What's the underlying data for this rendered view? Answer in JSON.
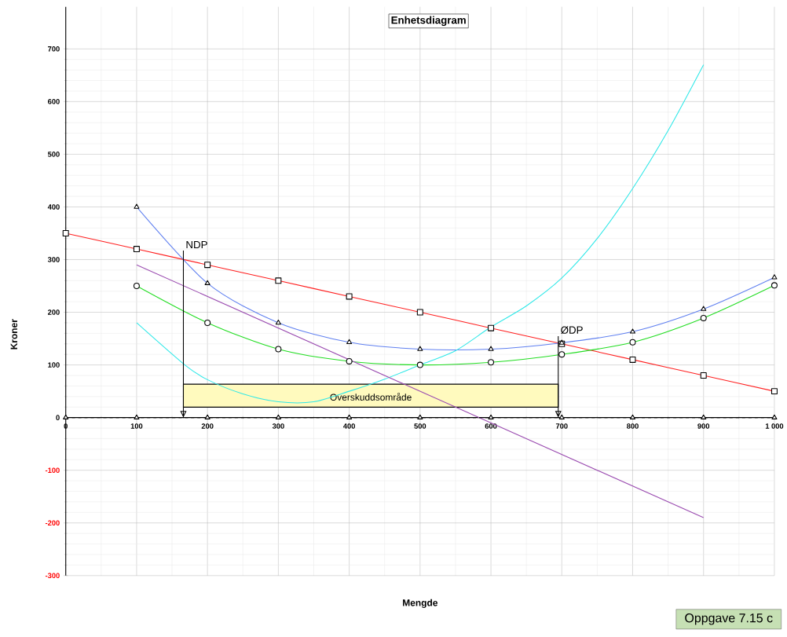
{
  "chart_data": {
    "type": "line",
    "title": "Enhetsdiagram",
    "xlabel": "Mengde",
    "ylabel": "Kroner",
    "x": [
      0,
      100,
      200,
      300,
      400,
      500,
      600,
      700,
      800,
      900,
      1000
    ],
    "xlim": [
      0,
      1000
    ],
    "ylim": [
      -300,
      780
    ],
    "xticks": [
      0,
      100,
      200,
      300,
      400,
      500,
      600,
      700,
      800,
      900,
      {
        "value": 1000,
        "label": "1 000"
      }
    ],
    "yticks": [
      -300,
      -200,
      -100,
      0,
      100,
      200,
      300,
      400,
      500,
      600,
      700
    ],
    "grid": true,
    "series": [
      {
        "color": "#ff2020",
        "marker": "square",
        "values": [
          350,
          320,
          290,
          260,
          230,
          200,
          170,
          140,
          110,
          80,
          50
        ]
      },
      {
        "color": "#6080f0",
        "marker": "triangle",
        "x": [
          100,
          200,
          300,
          400,
          500,
          600,
          700,
          800,
          900,
          1000
        ],
        "values": [
          400,
          255,
          180,
          143,
          130,
          130,
          142,
          163,
          206,
          266
        ]
      },
      {
        "color": "#22dd22",
        "marker": "circle",
        "x": [
          100,
          200,
          300,
          400,
          500,
          600,
          700,
          800,
          900,
          1000
        ],
        "values": [
          250,
          180,
          130,
          107,
          100,
          105,
          120,
          143,
          189,
          251
        ]
      },
      {
        "color": "#2ee8e8",
        "marker": "none",
        "x": [
          100,
          168,
          200,
          250,
          300,
          350,
          400,
          450,
          500,
          550,
          600,
          650,
          700,
          750,
          800,
          850,
          900
        ],
        "values": [
          180,
          100,
          72,
          45,
          30,
          30,
          50,
          73,
          100,
          127,
          172,
          212,
          265,
          340,
          435,
          545,
          670
        ]
      },
      {
        "color": "#9a4bb0",
        "marker": "none",
        "x": [
          100,
          900
        ],
        "values": [
          290,
          -190
        ]
      },
      {
        "color": "#000000",
        "marker": "triangle",
        "line_style": "dashed",
        "values": [
          0,
          0,
          0,
          0,
          0,
          0,
          0,
          0,
          0,
          0,
          0
        ]
      }
    ],
    "ref_lines": [
      {
        "axis": "x",
        "value": 166,
        "label": "NDP"
      },
      {
        "axis": "x",
        "value": 695,
        "label": "ØDP"
      }
    ],
    "bands": [
      {
        "axis": "x",
        "from": 166,
        "to": 695,
        "label": "Overskuddsområde",
        "color": "#fffabe"
      }
    ],
    "annotations": [
      "Oppgave 7.15 c"
    ]
  }
}
